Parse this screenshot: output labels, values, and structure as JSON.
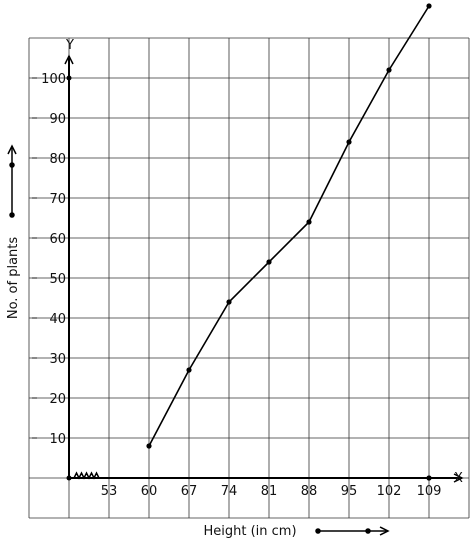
{
  "chart_data": {
    "type": "line",
    "xlabel": "Height (in cm)",
    "ylabel": "No. of plants",
    "x_axis_name": "X",
    "y_axis_name": "Y",
    "x_ticks": [
      "53",
      "60",
      "67",
      "74",
      "81",
      "88",
      "95",
      "102",
      "109"
    ],
    "y_ticks": [
      "10",
      "20",
      "30",
      "40",
      "50",
      "60",
      "70",
      "80",
      "90",
      "100"
    ],
    "axis_break": true,
    "grid": true,
    "x": [
      60,
      67,
      74,
      81,
      88,
      95,
      102,
      109
    ],
    "y": [
      8,
      27,
      44,
      54,
      64,
      84,
      102,
      118
    ],
    "xlim": [
      46,
      116
    ],
    "ylim": [
      -10,
      110
    ]
  }
}
